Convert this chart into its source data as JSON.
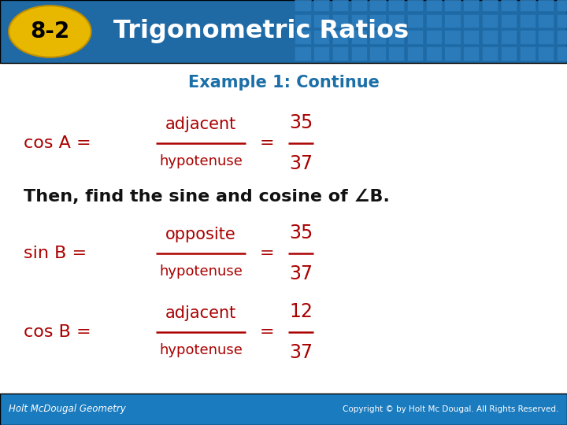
{
  "header_bg_color": "#1F6AA5",
  "header_text_color": "#FFFFFF",
  "badge_bg_color": "#E8B800",
  "badge_text": "8-2",
  "header_title": "Trigonometric Ratios",
  "body_bg_color": "#FFFFFF",
  "red_color": "#AA0000",
  "black_color": "#111111",
  "example_title": "Example 1: Continue",
  "example_title_color": "#1B6FA8",
  "footer_left": "Holt McDougal Geometry",
  "footer_right": "Copyright © by Holt Mc Dougal. All Rights Reserved.",
  "footer_bg": "#1A7BBF",
  "footer_text_color": "#FFFFFF",
  "cosA_label": "cos A =",
  "cosA_num": "adjacent",
  "cosA_den": "hypotenuse",
  "cosA_res_num": "35",
  "cosA_res_den": "37",
  "then_text": "Then, find the sine and cosine of ∠B.",
  "sinB_label": "sin B =",
  "sinB_num": "opposite",
  "sinB_den": "hypotenuse",
  "sinB_res_num": "35",
  "sinB_res_den": "37",
  "cosB_label": "cos B =",
  "cosB_num": "adjacent",
  "cosB_den": "hypotenuse",
  "cosB_res_num": "12",
  "cosB_res_den": "37",
  "tile_color": "#2E7FC0",
  "tile_dark": "#1A6AA8"
}
